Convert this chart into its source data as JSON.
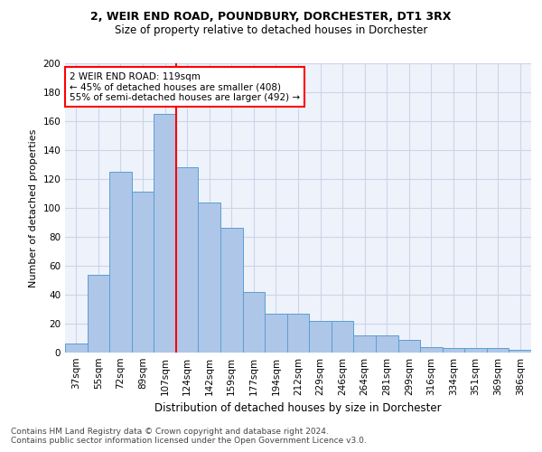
{
  "title1": "2, WEIR END ROAD, POUNDBURY, DORCHESTER, DT1 3RX",
  "title2": "Size of property relative to detached houses in Dorchester",
  "xlabel": "Distribution of detached houses by size in Dorchester",
  "ylabel": "Number of detached properties",
  "categories": [
    "37sqm",
    "55sqm",
    "72sqm",
    "89sqm",
    "107sqm",
    "124sqm",
    "142sqm",
    "159sqm",
    "177sqm",
    "194sqm",
    "212sqm",
    "229sqm",
    "246sqm",
    "264sqm",
    "281sqm",
    "299sqm",
    "316sqm",
    "334sqm",
    "351sqm",
    "369sqm",
    "386sqm"
  ],
  "values": [
    6,
    54,
    125,
    111,
    165,
    128,
    104,
    86,
    42,
    27,
    27,
    22,
    22,
    12,
    12,
    9,
    4,
    3,
    3,
    3,
    2
  ],
  "bar_color": "#aec6e8",
  "bar_edge_color": "#5a9fd4",
  "vline_color": "red",
  "annotation_line1": "2 WEIR END ROAD: 119sqm",
  "annotation_line2": "← 45% of detached houses are smaller (408)",
  "annotation_line3": "55% of semi-detached houses are larger (492) →",
  "annotation_box_color": "white",
  "annotation_box_edge": "red",
  "footer1": "Contains HM Land Registry data © Crown copyright and database right 2024.",
  "footer2": "Contains public sector information licensed under the Open Government Licence v3.0.",
  "ylim": [
    0,
    200
  ],
  "yticks": [
    0,
    20,
    40,
    60,
    80,
    100,
    120,
    140,
    160,
    180,
    200
  ],
  "grid_color": "#ccd5e8",
  "background_color": "#eef2fa",
  "title1_fontsize": 9,
  "title2_fontsize": 8.5,
  "xlabel_fontsize": 8.5,
  "ylabel_fontsize": 8,
  "tick_fontsize": 7.5,
  "annotation_fontsize": 7.5,
  "footer_fontsize": 6.5
}
